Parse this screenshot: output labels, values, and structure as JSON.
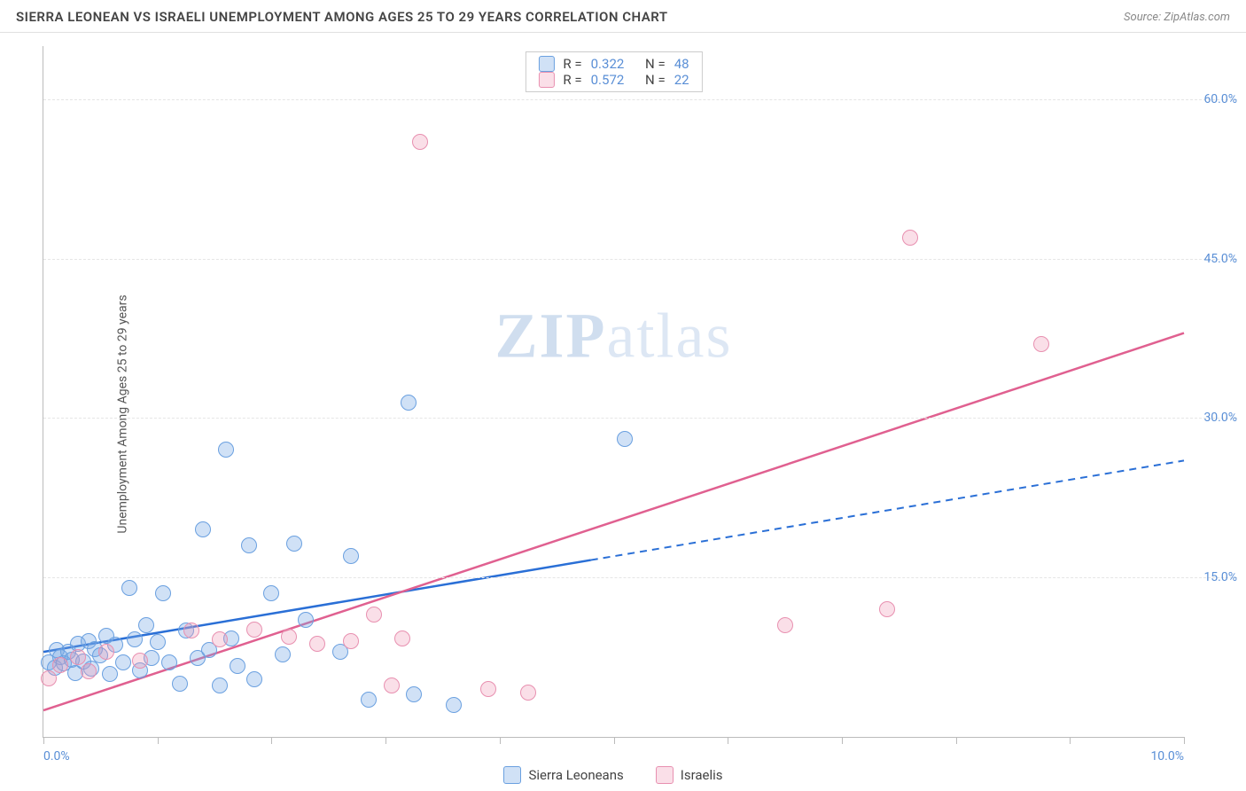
{
  "header": {
    "title": "SIERRA LEONEAN VS ISRAELI UNEMPLOYMENT AMONG AGES 25 TO 29 YEARS CORRELATION CHART",
    "source": "Source: ZipAtlas.com"
  },
  "chart": {
    "type": "scatter",
    "ylabel": "Unemployment Among Ages 25 to 29 years",
    "background_color": "#ffffff",
    "grid_color": "#e5e5e5",
    "axis_color": "#bbbbbb",
    "tick_label_color": "#5a8fd6",
    "xlim": [
      0,
      10
    ],
    "ylim": [
      0,
      65
    ],
    "x_ticks": [
      0,
      1,
      2,
      3,
      4,
      5,
      6,
      7,
      8,
      9,
      10
    ],
    "x_tick_labels": {
      "0": "0.0%",
      "10": "10.0%"
    },
    "y_ticks": [
      15,
      30,
      45,
      60
    ],
    "y_tick_labels": {
      "15": "15.0%",
      "30": "30.0%",
      "45": "45.0%",
      "60": "60.0%"
    },
    "marker_radius": 9,
    "watermark": {
      "prefix": "ZIP",
      "suffix": "atlas"
    },
    "series": [
      {
        "id": "s1",
        "name": "Sierra Leoneans",
        "color_fill": "rgba(120,170,230,0.35)",
        "color_stroke": "#6aa0e0",
        "trend_color": "#2a6fd6",
        "R": "0.322",
        "N": "48",
        "trend": {
          "y_at_x0": 8.0,
          "y_at_x10": 26.0,
          "solid_until_x": 4.8
        },
        "points": [
          [
            0.05,
            7.0
          ],
          [
            0.1,
            6.5
          ],
          [
            0.12,
            8.2
          ],
          [
            0.15,
            7.5
          ],
          [
            0.18,
            6.9
          ],
          [
            0.22,
            8.0
          ],
          [
            0.25,
            7.3
          ],
          [
            0.28,
            6.0
          ],
          [
            0.3,
            8.8
          ],
          [
            0.35,
            7.1
          ],
          [
            0.4,
            9.0
          ],
          [
            0.42,
            6.4
          ],
          [
            0.45,
            8.3
          ],
          [
            0.5,
            7.7
          ],
          [
            0.55,
            9.5
          ],
          [
            0.58,
            5.9
          ],
          [
            0.63,
            8.7
          ],
          [
            0.7,
            7.0
          ],
          [
            0.75,
            14.0
          ],
          [
            0.8,
            9.2
          ],
          [
            0.85,
            6.3
          ],
          [
            0.9,
            10.5
          ],
          [
            0.95,
            7.4
          ],
          [
            1.0,
            8.9
          ],
          [
            1.05,
            13.5
          ],
          [
            1.1,
            7.0
          ],
          [
            1.2,
            5.0
          ],
          [
            1.25,
            10.0
          ],
          [
            1.35,
            7.4
          ],
          [
            1.4,
            19.5
          ],
          [
            1.45,
            8.2
          ],
          [
            1.55,
            4.8
          ],
          [
            1.6,
            27.0
          ],
          [
            1.65,
            9.3
          ],
          [
            1.7,
            6.7
          ],
          [
            1.8,
            18.0
          ],
          [
            1.85,
            5.4
          ],
          [
            2.0,
            13.5
          ],
          [
            2.1,
            7.8
          ],
          [
            2.2,
            18.2
          ],
          [
            2.3,
            11.0
          ],
          [
            2.6,
            8.0
          ],
          [
            2.7,
            17.0
          ],
          [
            2.85,
            3.5
          ],
          [
            3.2,
            31.5
          ],
          [
            3.25,
            4.0
          ],
          [
            3.6,
            3.0
          ],
          [
            5.1,
            28.0
          ]
        ]
      },
      {
        "id": "s2",
        "name": "Israelis",
        "color_fill": "rgba(240,150,180,0.30)",
        "color_stroke": "#e890b0",
        "trend_color": "#e06090",
        "R": "0.572",
        "N": "22",
        "trend": {
          "y_at_x0": 2.5,
          "y_at_x10": 38.0,
          "solid_until_x": 10.0
        },
        "points": [
          [
            0.05,
            5.5
          ],
          [
            0.15,
            6.8
          ],
          [
            0.3,
            7.5
          ],
          [
            0.4,
            6.2
          ],
          [
            0.55,
            8.0
          ],
          [
            0.85,
            7.2
          ],
          [
            1.3,
            10.0
          ],
          [
            1.55,
            9.2
          ],
          [
            1.85,
            10.1
          ],
          [
            2.15,
            9.4
          ],
          [
            2.4,
            8.8
          ],
          [
            2.7,
            9.0
          ],
          [
            2.9,
            11.5
          ],
          [
            3.05,
            4.8
          ],
          [
            3.15,
            9.3
          ],
          [
            3.3,
            56.0
          ],
          [
            3.9,
            4.5
          ],
          [
            4.25,
            4.2
          ],
          [
            6.5,
            10.5
          ],
          [
            7.4,
            12.0
          ],
          [
            7.6,
            47.0
          ],
          [
            8.75,
            37.0
          ]
        ]
      }
    ],
    "legend_top": {
      "rows": [
        {
          "swatch": "s1",
          "r_label": "R =",
          "r_value": "0.322",
          "n_label": "N =",
          "n_value": "48"
        },
        {
          "swatch": "s2",
          "r_label": "R =",
          "r_value": "0.572",
          "n_label": "N =",
          "n_value": "22"
        }
      ]
    },
    "legend_bottom": [
      {
        "swatch": "s1",
        "label": "Sierra Leoneans"
      },
      {
        "swatch": "s2",
        "label": "Israelis"
      }
    ]
  }
}
